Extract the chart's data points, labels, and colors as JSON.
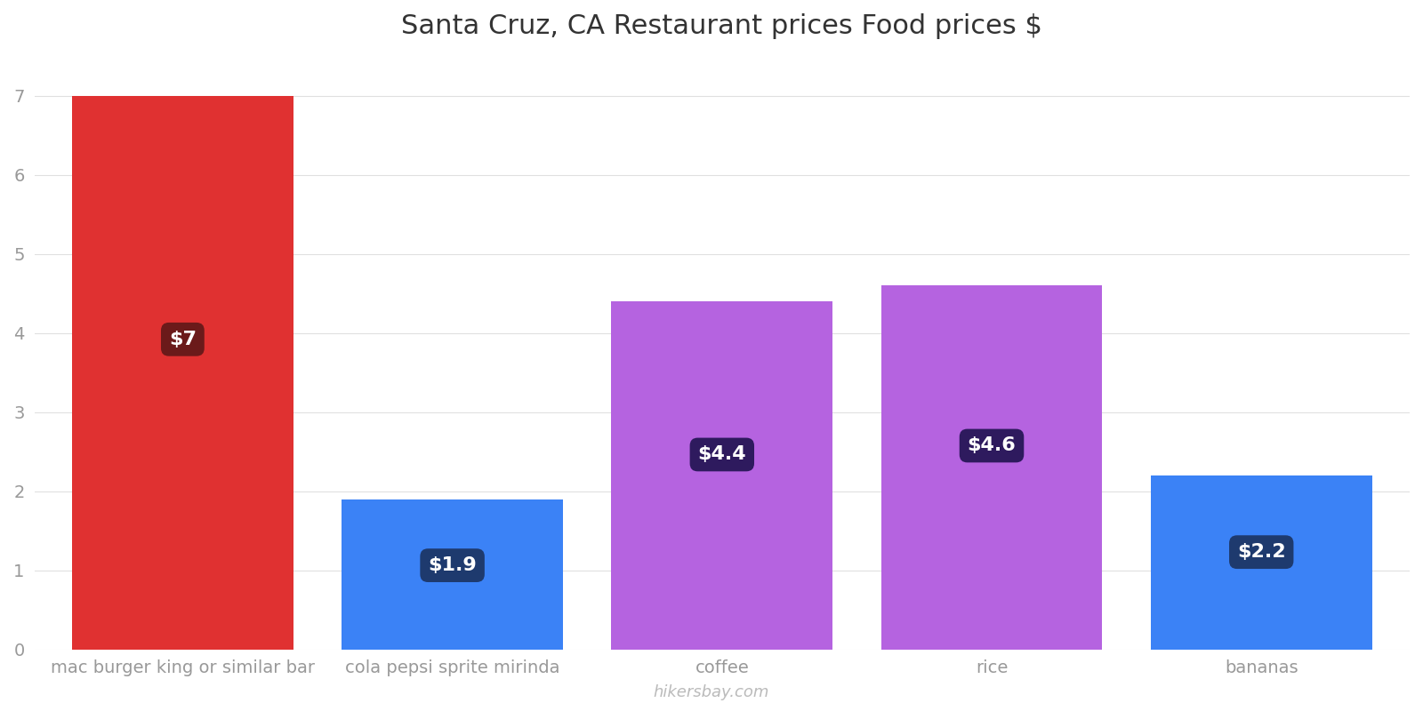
{
  "title": "Santa Cruz, CA Restaurant prices Food prices $",
  "categories": [
    "mac burger king or similar bar",
    "cola pepsi sprite mirinda",
    "coffee",
    "rice",
    "bananas"
  ],
  "values": [
    7.0,
    1.9,
    4.4,
    4.6,
    2.2
  ],
  "bar_colors": [
    "#e03131",
    "#3b82f6",
    "#b563e0",
    "#b563e0",
    "#3b82f6"
  ],
  "label_texts": [
    "$7",
    "$1.9",
    "$4.4",
    "$4.6",
    "$2.2"
  ],
  "label_box_colors": [
    "#6b1a1a",
    "#1e3a6e",
    "#2e1a5e",
    "#2e1a5e",
    "#1e3a6e"
  ],
  "ylim": [
    0,
    7.5
  ],
  "yticks": [
    0,
    1,
    2,
    3,
    4,
    5,
    6,
    7
  ],
  "title_fontsize": 22,
  "tick_fontsize": 14,
  "label_fontsize": 16,
  "watermark": "hikersbay.com",
  "background_color": "#ffffff",
  "grid_color": "#e0e0e0"
}
